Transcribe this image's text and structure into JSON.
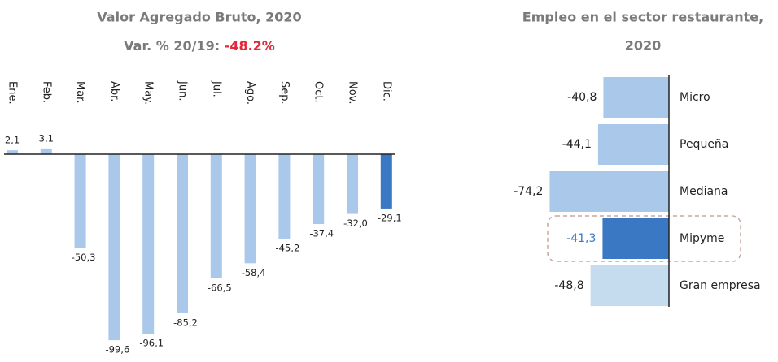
{
  "chart_data": [
    {
      "type": "bar",
      "title": "Valor Agregado Bruto, 2020",
      "subtitle": "Var. % 20/19:",
      "subtitle_highlight": "-48.2%",
      "categories": [
        "Ene.",
        "Feb.",
        "Mar.",
        "Abr.",
        "May.",
        "Jun.",
        "Jul.",
        "Ago.",
        "Sep.",
        "Oct.",
        "Nov.",
        "Dic."
      ],
      "values": [
        2.1,
        3.1,
        -50.3,
        -99.6,
        -96.1,
        -85.2,
        -66.5,
        -58.4,
        -45.2,
        -37.4,
        -32.0,
        -29.1
      ],
      "value_labels": [
        "2,1",
        "3,1",
        "-50,3",
        "-99,6",
        "-96,1",
        "-85,2",
        "-66,5",
        "-58,4",
        "-45,2",
        "-37,4",
        "-32,0",
        "-29,1"
      ],
      "colors": [
        "#a9c8ea",
        "#a9c8ea",
        "#a9c8ea",
        "#a9c8ea",
        "#a9c8ea",
        "#a9c8ea",
        "#a9c8ea",
        "#a9c8ea",
        "#a9c8ea",
        "#a9c8ea",
        "#a9c8ea",
        "#3a78c3"
      ],
      "ylim": [
        -100,
        5
      ]
    },
    {
      "type": "hbar",
      "title": [
        "Empleo en el sector restaurante,",
        "2020"
      ],
      "categories": [
        "Micro",
        "Pequeña",
        "Mediana",
        "Mipyme",
        "Gran empresa"
      ],
      "values": [
        -40.8,
        -44.1,
        -74.2,
        -41.3,
        -48.8
      ],
      "value_labels": [
        "-40,8",
        "-44,1",
        "-74,2",
        "-41,3",
        "-48,8"
      ],
      "colors": [
        "#a9c8ea",
        "#a9c8ea",
        "#a9c8ea",
        "#3a78c3",
        "#c5dcee"
      ],
      "label_colors": [
        "#222222",
        "#222222",
        "#222222",
        "#3a78c3",
        "#222222"
      ],
      "xlim": [
        -80,
        0
      ]
    }
  ]
}
